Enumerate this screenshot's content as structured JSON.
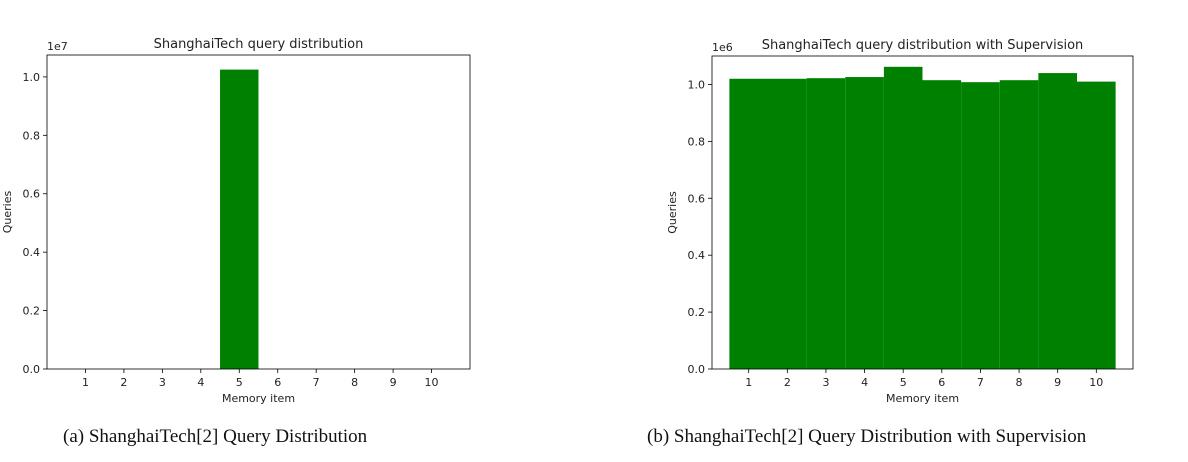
{
  "colors": {
    "bar": "#008000",
    "axis": "#000000"
  },
  "captions": [
    "(a) ShanghaiTech[2] Query Distribution",
    "(b) ShanghaiTech[2] Query Distribution with Supervision"
  ],
  "chart_data": [
    {
      "type": "bar",
      "title": "ShanghaiTech query distribution",
      "xlabel": "Memory item",
      "ylabel": "Queries",
      "scale_label": "1e7",
      "scale": 10000000,
      "categories": [
        "1",
        "2",
        "3",
        "4",
        "5",
        "6",
        "7",
        "8",
        "9",
        "10"
      ],
      "values": [
        0,
        0,
        0,
        0,
        10250000,
        0,
        0,
        0,
        0,
        0
      ],
      "ylim": [
        0,
        10750000
      ],
      "yticks": [
        0,
        2000000,
        4000000,
        6000000,
        8000000,
        10000000
      ],
      "ytick_labels": [
        "0.0",
        "0.2",
        "0.4",
        "0.6",
        "0.8",
        "1.0"
      ],
      "xlim": [
        0,
        11
      ],
      "grid": false
    },
    {
      "type": "bar",
      "title": "ShanghaiTech query distribution with Supervision",
      "xlabel": "Memory item",
      "ylabel": "Queries",
      "scale_label": "1e6",
      "scale": 1000000,
      "categories": [
        "1",
        "2",
        "3",
        "4",
        "5",
        "6",
        "7",
        "8",
        "9",
        "10"
      ],
      "values": [
        1020000,
        1020000,
        1022000,
        1026000,
        1062000,
        1015000,
        1008000,
        1015000,
        1040000,
        1010000
      ],
      "ylim": [
        0,
        1100000
      ],
      "yticks": [
        0,
        200000,
        400000,
        600000,
        800000,
        1000000
      ],
      "ytick_labels": [
        "0.0",
        "0.2",
        "0.4",
        "0.6",
        "0.8",
        "1.0"
      ],
      "xlim": [
        0.05,
        10.95
      ],
      "grid": false
    }
  ]
}
